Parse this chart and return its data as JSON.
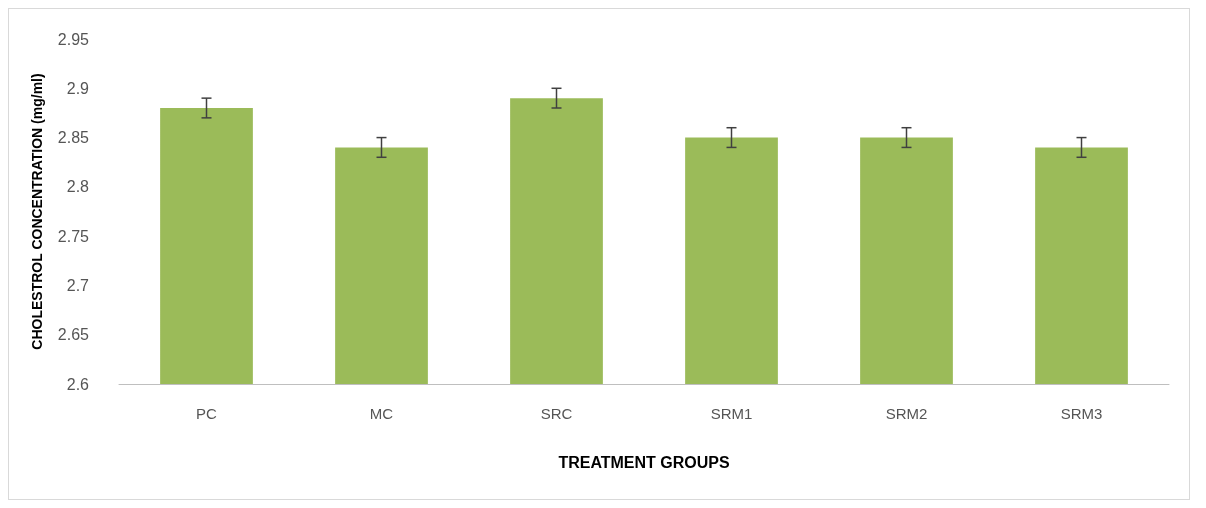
{
  "chart_data": {
    "type": "bar",
    "xlabel": "TREATMENT GROUPS",
    "ylabel": "CHOLESTROL CONCENTRATION (mg/ml)",
    "categories": [
      "PC",
      "MC",
      "SRC",
      "SRM1",
      "SRM2",
      "SRM3"
    ],
    "values": [
      2.88,
      2.84,
      2.89,
      2.85,
      2.85,
      2.84
    ],
    "errors": [
      0.01,
      0.01,
      0.01,
      0.01,
      0.01,
      0.01
    ],
    "color": "#9bbb59",
    "ylim": [
      2.6,
      2.95
    ],
    "yticks": [
      2.6,
      2.65,
      2.7,
      2.75,
      2.8,
      2.85,
      2.9,
      2.95
    ],
    "grid": false
  }
}
